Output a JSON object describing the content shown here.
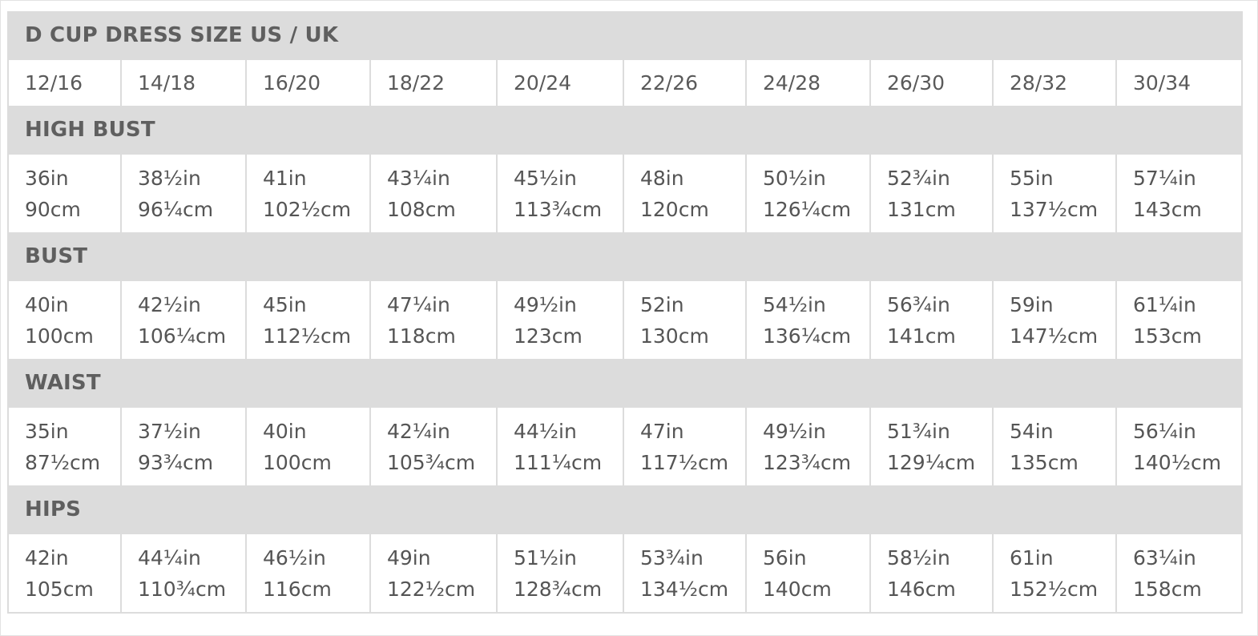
{
  "table": {
    "title": "D CUP DRESS SIZE US / UK",
    "sizes": [
      "12/16",
      "14/18",
      "16/20",
      "18/22",
      "20/24",
      "22/26",
      "24/28",
      "26/30",
      "28/32",
      "30/34"
    ],
    "sections": [
      {
        "label": "HIGH BUST",
        "values": [
          {
            "in": "36in",
            "cm": "90cm"
          },
          {
            "in": "38½in",
            "cm": "96¼cm"
          },
          {
            "in": "41in",
            "cm": "102½cm"
          },
          {
            "in": "43¼in",
            "cm": "108cm"
          },
          {
            "in": "45½in",
            "cm": "113¾cm"
          },
          {
            "in": "48in",
            "cm": "120cm"
          },
          {
            "in": "50½in",
            "cm": "126¼cm"
          },
          {
            "in": "52¾in",
            "cm": "131cm"
          },
          {
            "in": "55in",
            "cm": "137½cm"
          },
          {
            "in": "57¼in",
            "cm": "143cm"
          }
        ]
      },
      {
        "label": "BUST",
        "values": [
          {
            "in": "40in",
            "cm": "100cm"
          },
          {
            "in": "42½in",
            "cm": "106¼cm"
          },
          {
            "in": "45in",
            "cm": "112½cm"
          },
          {
            "in": "47¼in",
            "cm": "118cm"
          },
          {
            "in": "49½in",
            "cm": "123cm"
          },
          {
            "in": "52in",
            "cm": "130cm"
          },
          {
            "in": "54½in",
            "cm": "136¼cm"
          },
          {
            "in": "56¾in",
            "cm": "141cm"
          },
          {
            "in": "59in",
            "cm": "147½cm"
          },
          {
            "in": "61¼in",
            "cm": "153cm"
          }
        ]
      },
      {
        "label": "WAIST",
        "values": [
          {
            "in": "35in",
            "cm": "87½cm"
          },
          {
            "in": "37½in",
            "cm": "93¾cm"
          },
          {
            "in": "40in",
            "cm": "100cm"
          },
          {
            "in": "42¼in",
            "cm": "105¾cm"
          },
          {
            "in": "44½in",
            "cm": "111¼cm"
          },
          {
            "in": "47in",
            "cm": "117½cm"
          },
          {
            "in": "49½in",
            "cm": "123¾cm"
          },
          {
            "in": "51¾in",
            "cm": "129¼cm"
          },
          {
            "in": "54in",
            "cm": "135cm"
          },
          {
            "in": "56¼in",
            "cm": "140½cm"
          }
        ]
      },
      {
        "label": "HIPS",
        "values": [
          {
            "in": "42in",
            "cm": "105cm"
          },
          {
            "in": "44¼in",
            "cm": "110¾cm"
          },
          {
            "in": "46½in",
            "cm": "116cm"
          },
          {
            "in": "49in",
            "cm": "122½cm"
          },
          {
            "in": "51½in",
            "cm": "128¾cm"
          },
          {
            "in": "53¾in",
            "cm": "134½cm"
          },
          {
            "in": "56in",
            "cm": "140cm"
          },
          {
            "in": "58½in",
            "cm": "146cm"
          },
          {
            "in": "61in",
            "cm": "152½cm"
          },
          {
            "in": "63¼in",
            "cm": "158cm"
          }
        ]
      }
    ]
  },
  "colors": {
    "header_background": "#dcdcdc",
    "border": "#dcdcdc",
    "text": "#555555"
  }
}
